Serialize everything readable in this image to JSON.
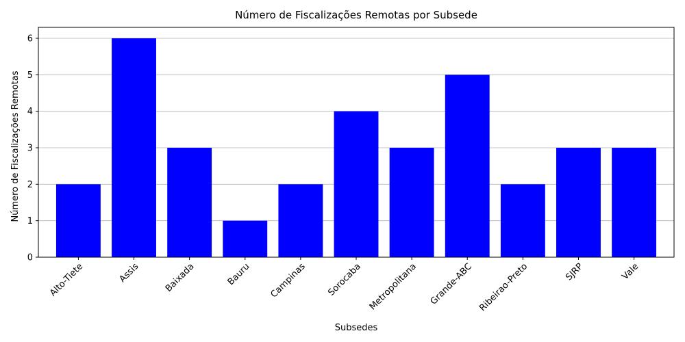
{
  "chart_data": {
    "type": "bar",
    "title": "Número de Fiscalizações Remotas por Subsede",
    "xlabel": "Subsedes",
    "ylabel": "Número de Fiscalizações Remotas",
    "categories": [
      "Alto-Tiete",
      "Assis",
      "Baixada",
      "Bauru",
      "Campinas",
      "Sorocaba",
      "Metropolitana",
      "Grande-ABC",
      "Ribeirao-Preto",
      "SJRP",
      "Vale"
    ],
    "values": [
      2,
      6,
      3,
      1,
      2,
      4,
      3,
      5,
      2,
      3,
      3
    ],
    "ylim": [
      0,
      6.3
    ],
    "yticks": [
      0,
      1,
      2,
      3,
      4,
      5,
      6
    ],
    "grid": "y",
    "x_tick_rotation_deg": 45,
    "bar_color": "#0000ff",
    "grid_color": "#b0b0b0"
  }
}
